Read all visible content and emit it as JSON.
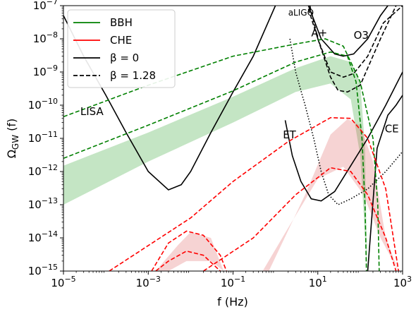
{
  "chart_data": {
    "type": "line",
    "xlabel": "f (Hz)",
    "ylabel": "Ω_GW (f)",
    "x_scale": "log",
    "y_scale": "log",
    "xlim": [
      1e-05,
      1000
    ],
    "ylim": [
      1e-15,
      1e-07
    ],
    "x_ticks": [
      {
        "value": 1e-05,
        "base": "10",
        "exp": "−5"
      },
      {
        "value": 0.001,
        "base": "10",
        "exp": "−3"
      },
      {
        "value": 0.1,
        "base": "10",
        "exp": "−1"
      },
      {
        "value": 10,
        "base": "10",
        "exp": "1"
      },
      {
        "value": 1000,
        "base": "10",
        "exp": "3"
      }
    ],
    "y_ticks": [
      {
        "value": 1e-15,
        "base": "10",
        "exp": "−15"
      },
      {
        "value": 1e-14,
        "base": "10",
        "exp": "−14"
      },
      {
        "value": 1e-13,
        "base": "10",
        "exp": "−13"
      },
      {
        "value": 1e-12,
        "base": "10",
        "exp": "−12"
      },
      {
        "value": 1e-11,
        "base": "10",
        "exp": "−11"
      },
      {
        "value": 1e-10,
        "base": "10",
        "exp": "−10"
      },
      {
        "value": 1e-09,
        "base": "10",
        "exp": "−9"
      },
      {
        "value": 1e-08,
        "base": "10",
        "exp": "−8"
      },
      {
        "value": 1e-07,
        "base": "10",
        "exp": "−7"
      }
    ],
    "legend": {
      "placement": "top-left",
      "entries": [
        {
          "label": "BBH",
          "color": "#008000",
          "style": "solid"
        },
        {
          "label": "CHE",
          "color": "#ff0000",
          "style": "solid"
        },
        {
          "label": "β = 0",
          "color": "#000000",
          "style": "solid"
        },
        {
          "label": "β = 1.28",
          "color": "#000000",
          "style": "dashed"
        }
      ]
    },
    "colors": {
      "bbh": "#008000",
      "che": "#ff0000",
      "bbh_band": "#2ca02c",
      "che_band": "#e06060",
      "sensitivity": "#000000"
    },
    "annotations": [
      {
        "text": "LISA",
        "x": 2.5e-05,
        "y": 5e-11
      },
      {
        "text": "aLIGO",
        "x": 2.0,
        "y": 5e-08
      },
      {
        "text": "A+",
        "x": 7.0,
        "y": 1.2e-08
      },
      {
        "text": "O3",
        "x": 70,
        "y": 1e-08
      },
      {
        "text": "ET",
        "x": 1.5,
        "y": 1e-11
      },
      {
        "text": "CE",
        "x": 380,
        "y": 1.5e-11
      }
    ],
    "bands": [
      {
        "name": "BBH",
        "color_key": "bbh_band",
        "upper": [
          [
            1e-05,
            1.5e-12
          ],
          [
            0.001,
            1.5e-11
          ],
          [
            0.1,
            1.8e-10
          ],
          [
            3,
            1.3e-09
          ],
          [
            20,
            3e-09
          ],
          [
            60,
            2e-09
          ],
          [
            100,
            5e-10
          ],
          [
            130,
            5e-12
          ],
          [
            145,
            1e-15
          ]
        ],
        "lower": [
          [
            145,
            1e-15
          ],
          [
            100,
            3e-12
          ],
          [
            60,
            1.5e-10
          ],
          [
            20,
            4.5e-10
          ],
          [
            3,
            2.5e-10
          ],
          [
            0.1,
            3e-11
          ],
          [
            0.001,
            2e-12
          ],
          [
            1e-05,
            1e-13
          ]
        ]
      },
      {
        "name": "CHE",
        "color_key": "che_band",
        "upper": [
          [
            0.7,
            1e-15
          ],
          [
            5,
            2e-13
          ],
          [
            20,
            1.3e-11
          ],
          [
            50,
            3.8e-11
          ],
          [
            100,
            2.5e-11
          ],
          [
            200,
            2e-12
          ],
          [
            400,
            1e-14
          ],
          [
            800,
            1e-15
          ]
        ],
        "lower": [
          [
            800,
            1e-15
          ],
          [
            300,
            1e-14
          ],
          [
            120,
            2e-13
          ],
          [
            40,
            1.4e-12
          ],
          [
            10,
            6e-13
          ],
          [
            2,
            2e-14
          ],
          [
            0.5,
            1e-15
          ]
        ]
      },
      {
        "name": "CHE",
        "color_key": "che_band",
        "upper": [
          [
            0.0015,
            1e-15
          ],
          [
            0.005,
            6e-15
          ],
          [
            0.01,
            1.5e-14
          ],
          [
            0.03,
            1e-14
          ],
          [
            0.06,
            1e-15
          ]
        ],
        "lower": [
          [
            0.06,
            1e-15
          ],
          [
            0.03,
            2e-15
          ],
          [
            0.008,
            2e-15
          ],
          [
            0.003,
            1e-15
          ]
        ]
      }
    ],
    "series": [
      {
        "name": "LISA",
        "color_key": "sensitivity",
        "dash": "solid",
        "points": [
          [
            1e-05,
            5e-08
          ],
          [
            3e-05,
            3e-09
          ],
          [
            0.0001,
            2e-10
          ],
          [
            0.0003,
            1.5e-11
          ],
          [
            0.001,
            1e-12
          ],
          [
            0.003,
            2.8e-13
          ],
          [
            0.006,
            4e-13
          ],
          [
            0.01,
            1e-12
          ],
          [
            0.03,
            1.5e-11
          ],
          [
            0.1,
            2.5e-10
          ],
          [
            0.3,
            3e-09
          ],
          [
            1,
            1e-07
          ]
        ]
      },
      {
        "name": "aLIGO",
        "color_key": "sensitivity",
        "dash": "dotted",
        "points": [
          [
            2.2,
            1e-08
          ],
          [
            3,
            1e-09
          ],
          [
            5,
            1e-10
          ],
          [
            8,
            1e-11
          ],
          [
            12,
            1e-12
          ],
          [
            18,
            2e-13
          ],
          [
            30,
            1e-13
          ],
          [
            60,
            1.5e-13
          ],
          [
            150,
            3e-13
          ],
          [
            400,
            1e-12
          ],
          [
            1000,
            4e-12
          ]
        ]
      },
      {
        "name": "ET",
        "color_key": "sensitivity",
        "dash": "solid",
        "points": [
          [
            1.7,
            3.5e-11
          ],
          [
            2.5,
            3e-12
          ],
          [
            4,
            5e-13
          ],
          [
            7,
            1.5e-13
          ],
          [
            12,
            1.3e-13
          ],
          [
            25,
            2.5e-13
          ],
          [
            60,
            1.5e-12
          ],
          [
            150,
            1e-11
          ],
          [
            400,
            1e-10
          ],
          [
            1000,
            1e-09
          ]
        ]
      },
      {
        "name": "O3 β=0",
        "color_key": "sensitivity",
        "dash": "solid",
        "points": [
          [
            6,
            1e-07
          ],
          [
            12,
            1e-08
          ],
          [
            25,
            3.5e-09
          ],
          [
            40,
            3e-09
          ],
          [
            70,
            3.5e-09
          ],
          [
            150,
            1e-08
          ],
          [
            300,
            5e-08
          ],
          [
            450,
            1e-07
          ]
        ]
      },
      {
        "name": "O3 β=1.28",
        "color_key": "sensitivity",
        "dash": "dashed",
        "points": [
          [
            6,
            8e-08
          ],
          [
            10,
            1e-08
          ],
          [
            20,
            7e-10
          ],
          [
            30,
            2.8e-10
          ],
          [
            50,
            2.5e-10
          ],
          [
            100,
            4e-10
          ],
          [
            300,
            1e-08
          ],
          [
            700,
            1e-07
          ]
        ]
      },
      {
        "name": "A+",
        "color_key": "sensitivity",
        "dash": "dashed",
        "points": [
          [
            6.5,
            1e-07
          ],
          [
            10,
            1e-08
          ],
          [
            20,
            1e-09
          ],
          [
            40,
            7e-10
          ],
          [
            70,
            9e-10
          ],
          [
            150,
            3e-09
          ],
          [
            350,
            3e-08
          ],
          [
            1000,
            1e-07
          ]
        ]
      },
      {
        "name": "CE",
        "color_key": "sensitivity",
        "dash": "solid",
        "points": [
          [
            150,
            1e-15
          ],
          [
            250,
            5e-12
          ],
          [
            450,
            5e-11
          ],
          [
            700,
            1e-10
          ],
          [
            1000,
            2e-10
          ]
        ]
      },
      {
        "name": "BBH β=0",
        "color_key": "bbh",
        "dash": "dashed",
        "points": [
          [
            1e-05,
            2.5e-12
          ],
          [
            0.001,
            2.5e-11
          ],
          [
            0.1,
            2.7e-10
          ],
          [
            3,
            2e-09
          ],
          [
            20,
            4e-09
          ],
          [
            50,
            3e-09
          ],
          [
            80,
            5e-10
          ],
          [
            110,
            1e-11
          ],
          [
            130,
            1e-13
          ],
          [
            140,
            1e-15
          ]
        ]
      },
      {
        "name": "BBH β=1.28",
        "color_key": "bbh",
        "dash": "dashed",
        "points": [
          [
            1e-05,
            4.5e-11
          ],
          [
            0.001,
            4e-10
          ],
          [
            0.1,
            3e-09
          ],
          [
            3,
            7e-09
          ],
          [
            15,
            1e-08
          ],
          [
            40,
            6e-09
          ],
          [
            100,
            5e-10
          ],
          [
            200,
            1e-11
          ],
          [
            260,
            1e-13
          ],
          [
            280,
            1e-15
          ]
        ]
      },
      {
        "name": "CHE β=0 low",
        "color_key": "che",
        "dash": "dashed",
        "points": [
          [
            0.0012,
            1e-15
          ],
          [
            0.003,
            7e-15
          ],
          [
            0.008,
            1.6e-14
          ],
          [
            0.02,
            1.2e-14
          ],
          [
            0.05,
            3e-15
          ],
          [
            0.07,
            1e-15
          ]
        ]
      },
      {
        "name": "CHE β=1.28 low",
        "color_key": "che",
        "dash": "dashed",
        "points": [
          [
            0.0015,
            1e-15
          ],
          [
            0.003,
            2e-15
          ],
          [
            0.008,
            4e-15
          ],
          [
            0.02,
            3e-15
          ],
          [
            0.05,
            1e-15
          ]
        ]
      },
      {
        "name": "CHE β=0",
        "color_key": "che",
        "dash": "dashed",
        "points": [
          [
            0.02,
            1e-15
          ],
          [
            0.3,
            1e-14
          ],
          [
            3,
            2e-13
          ],
          [
            20,
            1.3e-12
          ],
          [
            60,
            1e-12
          ],
          [
            150,
            2e-13
          ],
          [
            400,
            1e-14
          ],
          [
            700,
            1e-15
          ]
        ]
      },
      {
        "name": "CHE β=1.28",
        "color_key": "che",
        "dash": "dashed",
        "points": [
          [
            0.00012,
            1e-15
          ],
          [
            0.01,
            4e-14
          ],
          [
            0.1,
            5e-13
          ],
          [
            2,
            8e-12
          ],
          [
            20,
            4.2e-11
          ],
          [
            60,
            4e-11
          ],
          [
            150,
            1e-11
          ],
          [
            400,
            3e-13
          ],
          [
            800,
            1e-15
          ]
        ]
      }
    ]
  }
}
